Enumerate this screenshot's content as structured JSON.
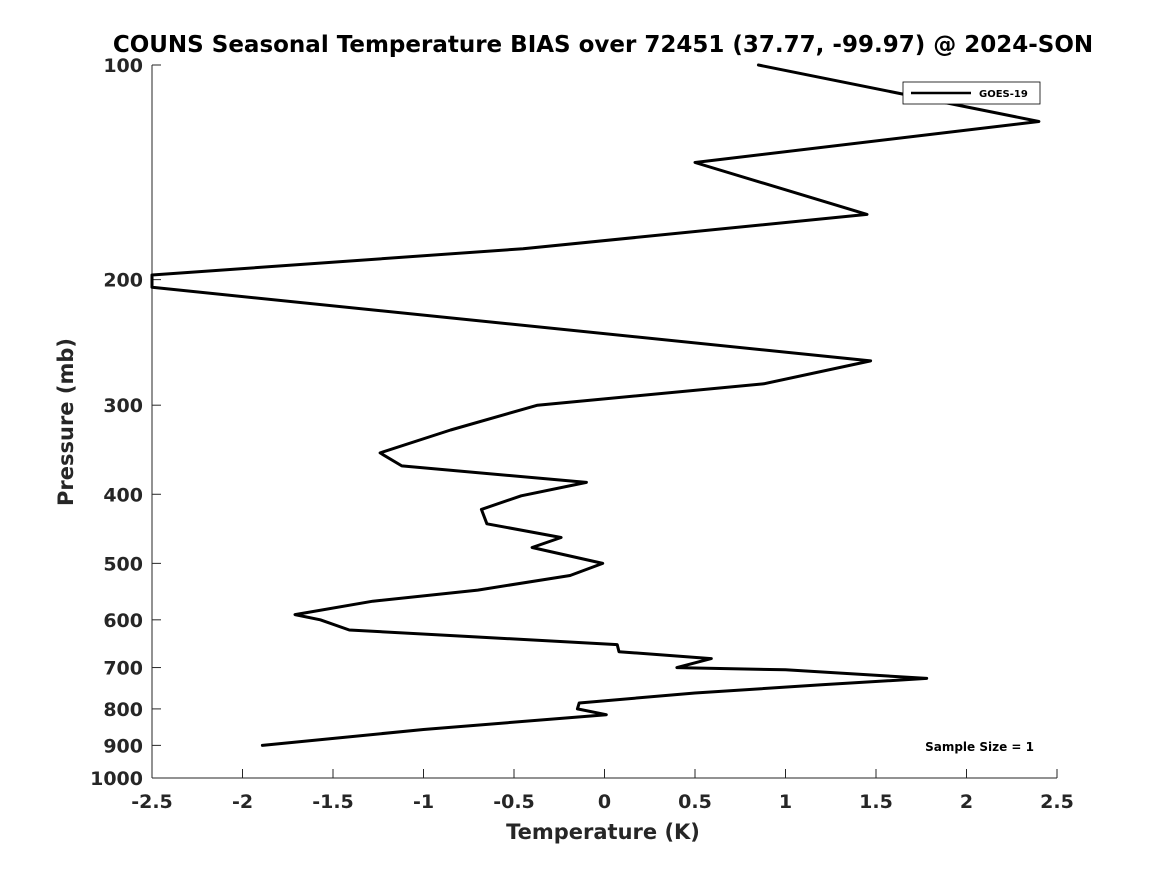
{
  "chart_data": {
    "type": "line",
    "title": "COUNS Seasonal Temperature BIAS over 72451 (37.77, -99.97) @ 2024-SON",
    "xlabel": "Temperature (K)",
    "ylabel": "Pressure (mb)",
    "xlim": [
      -2.5,
      2.5
    ],
    "ylim": [
      100,
      1000
    ],
    "yscale": "log",
    "y_reversed": true,
    "grid": false,
    "legend_position": "top-right",
    "x_ticks": [
      -2.5,
      -2,
      -1.5,
      -1,
      -0.5,
      0,
      0.5,
      1,
      1.5,
      2,
      2.5
    ],
    "x_tick_labels": [
      "-2.5",
      "-2",
      "-1.5",
      "-1",
      "-0.5",
      "0",
      "0.5",
      "1",
      "1.5",
      "2",
      "2.5"
    ],
    "y_ticks": [
      100,
      200,
      300,
      400,
      500,
      600,
      700,
      800,
      900,
      1000
    ],
    "y_tick_labels": [
      "100",
      "200",
      "300",
      "400",
      "500",
      "600",
      "700",
      "800",
      "900",
      "1000"
    ],
    "series": [
      {
        "name": "GOES-19",
        "color": "#000000",
        "points": [
          {
            "x": 0.85,
            "y": 100
          },
          {
            "x": 2.4,
            "y": 120
          },
          {
            "x": 0.5,
            "y": 137
          },
          {
            "x": 1.45,
            "y": 162
          },
          {
            "x": -0.45,
            "y": 181
          },
          {
            "x": -2.5,
            "y": 197
          },
          {
            "x": -2.5,
            "y": 205
          },
          {
            "x": 1.47,
            "y": 260
          },
          {
            "x": 0.88,
            "y": 280
          },
          {
            "x": -0.37,
            "y": 300
          },
          {
            "x": -0.85,
            "y": 325
          },
          {
            "x": -1.24,
            "y": 350
          },
          {
            "x": -1.12,
            "y": 365
          },
          {
            "x": -0.1,
            "y": 385
          },
          {
            "x": -0.46,
            "y": 402
          },
          {
            "x": -0.68,
            "y": 420
          },
          {
            "x": -0.65,
            "y": 440
          },
          {
            "x": -0.24,
            "y": 460
          },
          {
            "x": -0.4,
            "y": 475
          },
          {
            "x": -0.01,
            "y": 500
          },
          {
            "x": -0.19,
            "y": 520
          },
          {
            "x": -0.7,
            "y": 545
          },
          {
            "x": -1.28,
            "y": 565
          },
          {
            "x": -1.71,
            "y": 590
          },
          {
            "x": -1.57,
            "y": 600
          },
          {
            "x": -1.41,
            "y": 620
          },
          {
            "x": 0.07,
            "y": 650
          },
          {
            "x": 0.08,
            "y": 665
          },
          {
            "x": 0.59,
            "y": 680
          },
          {
            "x": 0.4,
            "y": 700
          },
          {
            "x": 1.0,
            "y": 705
          },
          {
            "x": 1.78,
            "y": 725
          },
          {
            "x": 1.2,
            "y": 740
          },
          {
            "x": 0.5,
            "y": 760
          },
          {
            "x": -0.14,
            "y": 785
          },
          {
            "x": -0.15,
            "y": 800
          },
          {
            "x": 0.01,
            "y": 815
          },
          {
            "x": -1.0,
            "y": 855
          },
          {
            "x": -1.89,
            "y": 900
          }
        ]
      }
    ],
    "annotations": [
      "Sample Size = 1"
    ]
  }
}
